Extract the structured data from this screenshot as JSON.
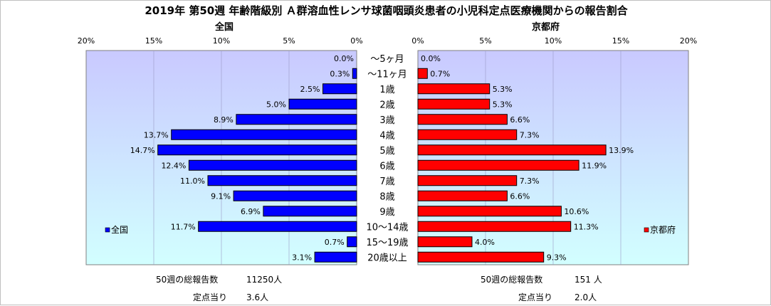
{
  "title": "2019年 第50週 年齢階級別 Ａ群溶血性レンサ球菌咽頭炎患者の小児科定点医療機関からの報告割合",
  "colors": {
    "national": "#0000ff",
    "kyoto": "#ff0000",
    "plot_bg_top": "#c9c9ff",
    "plot_bg_bottom": "#d2ffff"
  },
  "chart_data": {
    "type": "bar",
    "orientation": "horizontal",
    "categories": [
      "～5ヶ月",
      "～11ヶ月",
      "1歳",
      "2歳",
      "3歳",
      "4歳",
      "5歳",
      "6歳",
      "7歳",
      "8歳",
      "9歳",
      "10～14歳",
      "15～19歳",
      "20歳以上"
    ],
    "panels": [
      {
        "subtitle": "全国",
        "legend": "全国",
        "legend_position": "bottom-left",
        "values": [
          0.0,
          0.3,
          2.5,
          5.0,
          8.9,
          13.7,
          14.7,
          12.4,
          11.0,
          9.1,
          6.9,
          11.7,
          0.7,
          3.1
        ],
        "value_labels": [
          "0.0%",
          "0.3%",
          "2.5%",
          "5.0%",
          "8.9%",
          "13.7%",
          "14.7%",
          "12.4%",
          "11.0%",
          "9.1%",
          "6.9%",
          "11.7%",
          "0.7%",
          "3.1%"
        ],
        "xlim": [
          0,
          20
        ],
        "direction": "right-to-left",
        "ticks": [
          "20%",
          "15%",
          "10%",
          "5%",
          "0%"
        ],
        "grid": true
      },
      {
        "subtitle": "京都府",
        "legend": "京都府",
        "legend_position": "bottom-right",
        "values": [
          0.0,
          0.7,
          5.3,
          5.3,
          6.6,
          7.3,
          13.9,
          11.9,
          7.3,
          6.6,
          10.6,
          11.3,
          4.0,
          9.3
        ],
        "value_labels": [
          "0.0%",
          "0.7%",
          "5.3%",
          "5.3%",
          "6.6%",
          "7.3%",
          "13.9%",
          "11.9%",
          "7.3%",
          "6.6%",
          "10.6%",
          "11.3%",
          "4.0%",
          "9.3%"
        ],
        "xlim": [
          0,
          20
        ],
        "direction": "left-to-right",
        "ticks": [
          "0%",
          "5%",
          "10%",
          "15%",
          "20%"
        ],
        "grid": true
      }
    ]
  },
  "footer": {
    "national": {
      "total_label": "50週の総報告数",
      "total_value": "11250人",
      "per_label": "定点当り",
      "per_value": "3.6人"
    },
    "kyoto": {
      "total_label": "50週の総報告数",
      "total_value": "151 人",
      "per_label": "定点当り",
      "per_value": "2.0人"
    }
  }
}
